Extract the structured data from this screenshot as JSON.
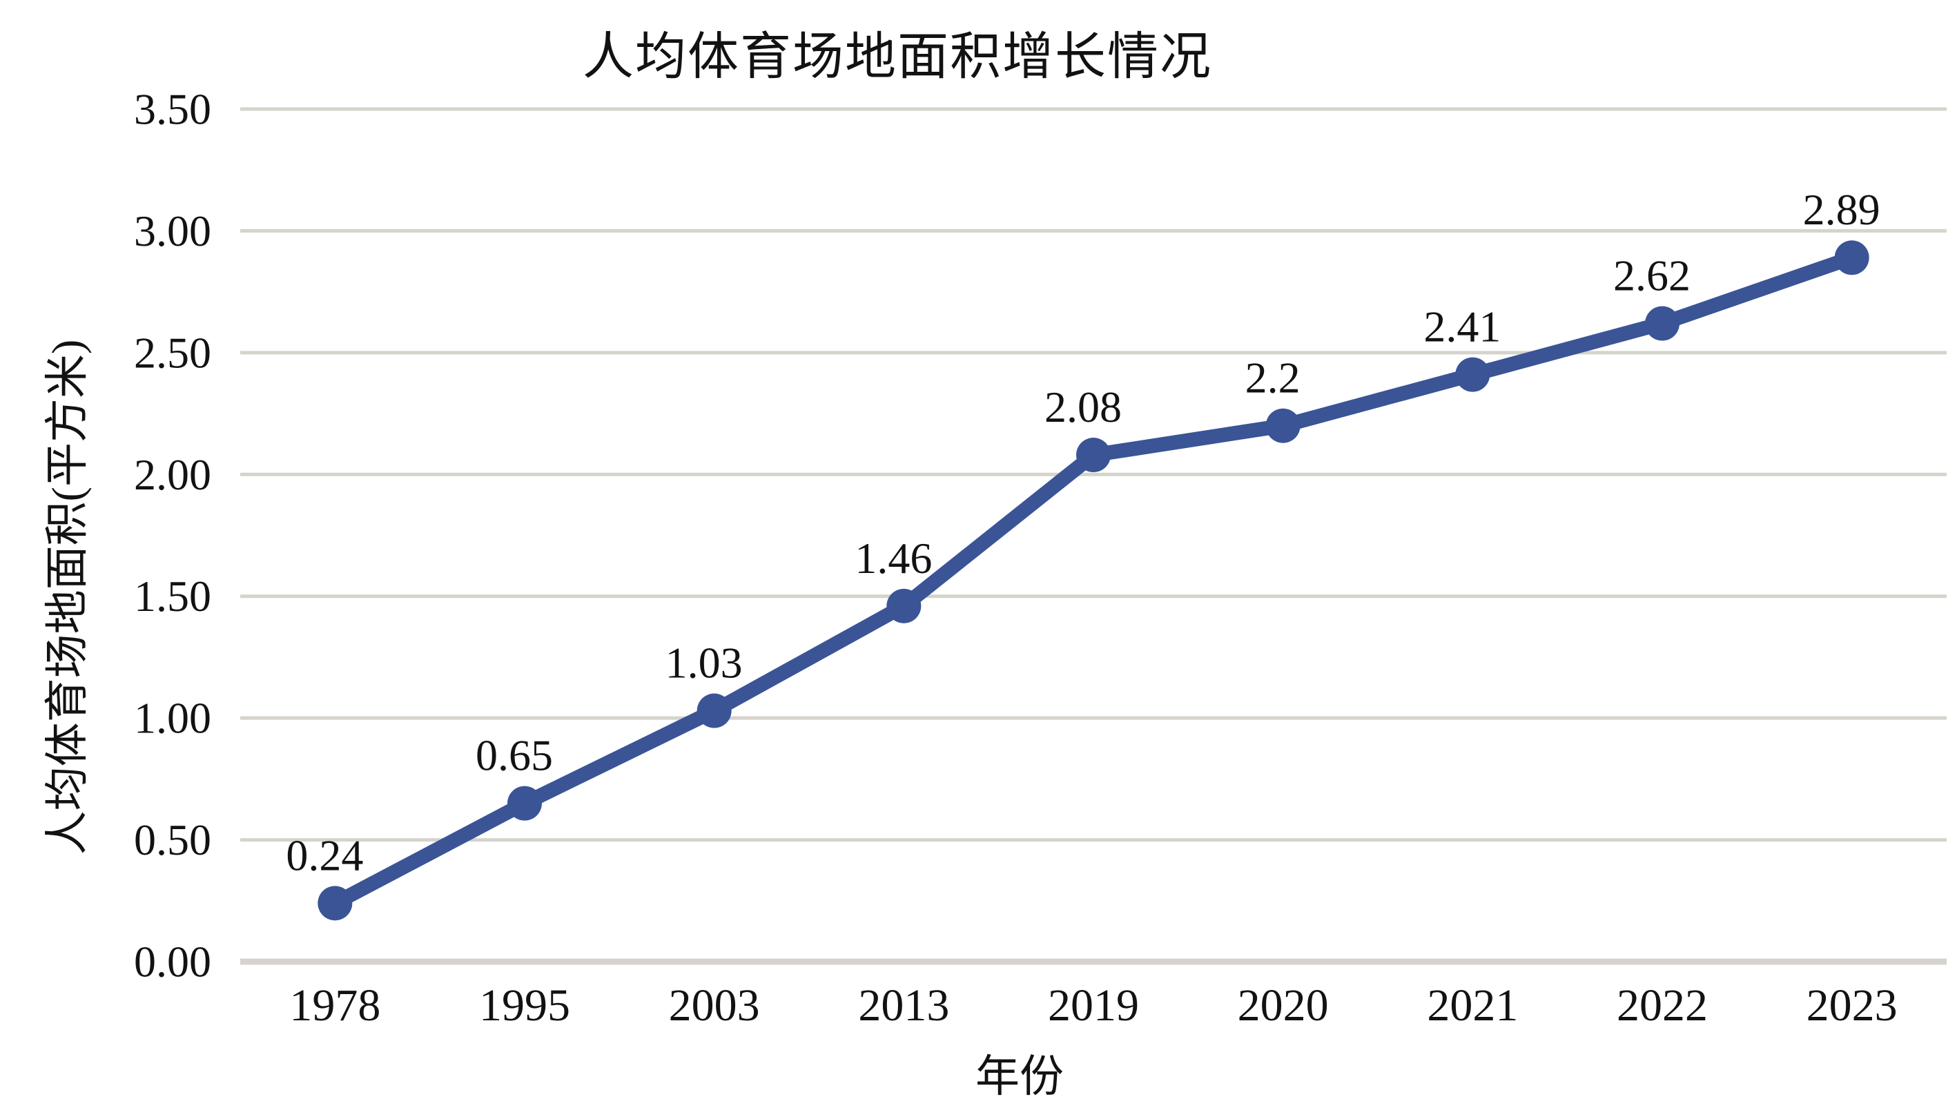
{
  "chart_data": {
    "type": "line",
    "title": "人均体育场地面积增长情况",
    "xlabel": "年份",
    "ylabel": "人均体育场地面积(平方米)",
    "categories": [
      "1978",
      "1995",
      "2003",
      "2013",
      "2019",
      "2020",
      "2021",
      "2022",
      "2023"
    ],
    "series": [
      {
        "name": "人均体育场地面积",
        "values": [
          0.24,
          0.65,
          1.03,
          1.46,
          2.08,
          2.2,
          2.41,
          2.62,
          2.89
        ],
        "point_labels": [
          "0.24",
          "0.65",
          "1.03",
          "1.46",
          "2.08",
          "2.2",
          "2.41",
          "2.62",
          "2.89"
        ]
      }
    ],
    "y_ticks": [
      "0.00",
      "0.50",
      "1.00",
      "1.50",
      "2.00",
      "2.50",
      "3.00",
      "3.50"
    ],
    "ylim": [
      0,
      3.5
    ],
    "y_tick_step": 0.5,
    "grid": "horizontal",
    "legend": "none",
    "colors": {
      "line": "#3A5496",
      "marker": "#3A5496",
      "gridline": "#D6D3CC",
      "text": "#121212",
      "background": "#FFFFFF"
    }
  }
}
